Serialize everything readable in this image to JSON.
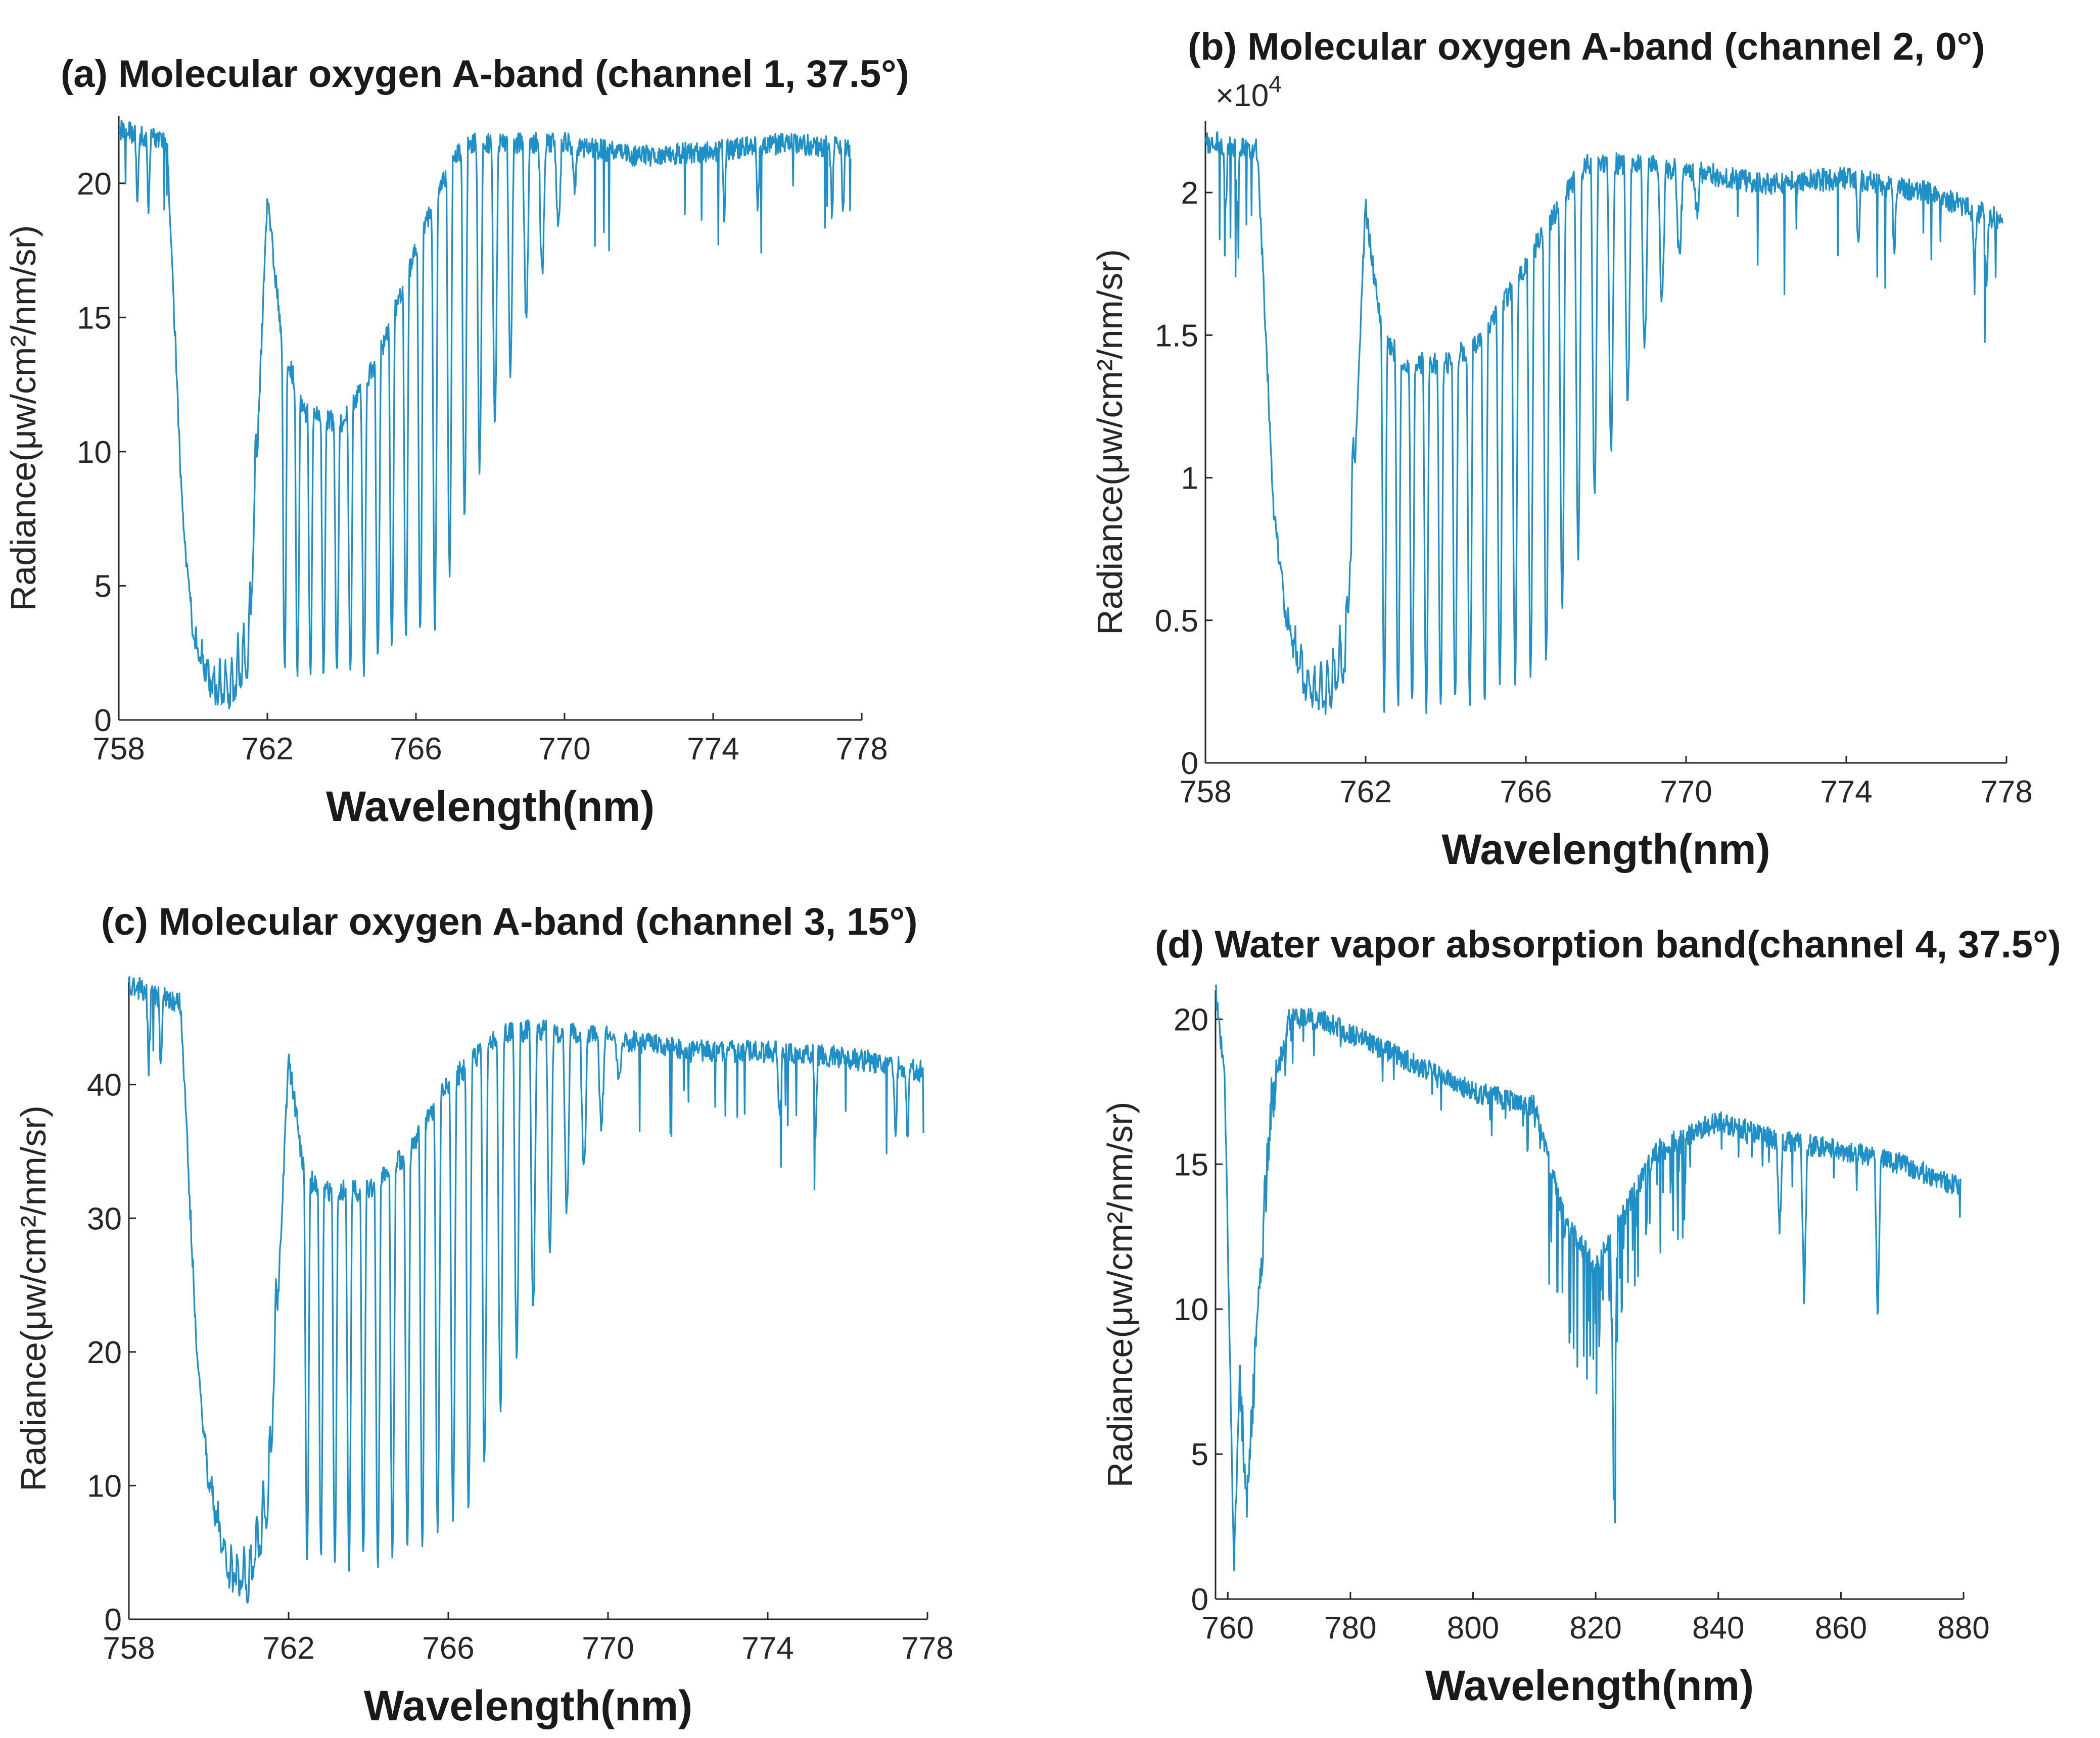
{
  "figure": {
    "line_color": "#1f8fc8",
    "axis_color": "#262626"
  },
  "chart_data": [
    {
      "id": "a",
      "type": "line",
      "title": "(a) Molecular oxygen A-band (channel 1, 37.5°)",
      "xlabel": "Wavelength(nm)",
      "ylabel": "Radiance(μw/cm²/nm/sr)",
      "xlim": [
        758,
        778
      ],
      "ylim": [
        0,
        22.5
      ],
      "xticks": [
        758,
        762,
        766,
        770,
        774,
        778
      ],
      "yticks": [
        0,
        5,
        10,
        15,
        20
      ],
      "exponent": "",
      "profile": "oxygen",
      "series": [
        {
          "name": "channel 1",
          "x": [
            758,
            759.3,
            759.7,
            760.0,
            760.5,
            761.0,
            761.5,
            762.0,
            762.4,
            763.0,
            764.0,
            765.0,
            766.0,
            767.0,
            767.5,
            768.5,
            770,
            772,
            774,
            776,
            777.7
          ],
          "y": [
            22.0,
            21.5,
            8.0,
            3.0,
            1.0,
            0.8,
            2.0,
            19.5,
            14.0,
            11.5,
            11.0,
            13.5,
            17.5,
            21.0,
            21.5,
            21.5,
            21.5,
            21.0,
            21.2,
            21.5,
            21.3
          ]
        }
      ]
    },
    {
      "id": "b",
      "type": "line",
      "title": "(b) Molecular oxygen A-band (channel 2, 0°)",
      "xlabel": "Wavelength(nm)",
      "ylabel": "Radiance(μw/cm²/nm/sr)",
      "xlim": [
        758,
        778
      ],
      "ylim": [
        0,
        2.25
      ],
      "xticks": [
        758,
        762,
        766,
        770,
        774,
        778
      ],
      "yticks": [
        0,
        0.5,
        1,
        1.5,
        2
      ],
      "exponent": "×10",
      "exponent_power": "4",
      "profile": "oxygen",
      "series": [
        {
          "name": "channel 2",
          "x": [
            758,
            759.3,
            759.7,
            760.0,
            760.5,
            761.0,
            761.5,
            762.0,
            762.4,
            763.0,
            764.0,
            765.0,
            766.0,
            767.0,
            767.5,
            768.5,
            770,
            772,
            774,
            776,
            777.9
          ],
          "y": [
            2.18,
            2.15,
            0.9,
            0.5,
            0.25,
            0.2,
            0.3,
            1.95,
            1.5,
            1.4,
            1.4,
            1.5,
            1.75,
            2.0,
            2.1,
            2.1,
            2.08,
            2.03,
            2.05,
            2.0,
            1.9
          ]
        }
      ]
    },
    {
      "id": "c",
      "type": "line",
      "title": "(c) Molecular oxygen A-band (channel 3, 15°)",
      "xlabel": "Wavelength(nm)",
      "ylabel": "Radiance(μw/cm²/nm/sr)",
      "xlim": [
        758,
        778
      ],
      "ylim": [
        0,
        48
      ],
      "xticks": [
        758,
        762,
        766,
        770,
        774,
        778
      ],
      "yticks": [
        0,
        10,
        20,
        30,
        40
      ],
      "exponent": "",
      "profile": "oxygen",
      "series": [
        {
          "name": "channel 3",
          "x": [
            758,
            759.3,
            759.7,
            760.0,
            760.5,
            761.0,
            761.5,
            762.0,
            762.4,
            763.0,
            764.0,
            765.0,
            766.0,
            767.0,
            767.5,
            768.5,
            770,
            772,
            774,
            776,
            777.9
          ],
          "y": [
            47.5,
            46.0,
            20.0,
            10.0,
            3.0,
            2.0,
            8.0,
            42.0,
            33.0,
            32.0,
            32.0,
            35.0,
            40.0,
            43.0,
            44.0,
            44.0,
            43.5,
            42.5,
            42.5,
            42.0,
            41.0
          ]
        }
      ]
    },
    {
      "id": "d",
      "type": "line",
      "title": "(d) Water vapor absorption band(channel 4, 37.5°)",
      "xlabel": "Wavelength(nm)",
      "ylabel": "Radiance(μw/cm²/nm/sr)",
      "xlim": [
        758,
        880
      ],
      "ylim": [
        0,
        21
      ],
      "xticks": [
        760,
        780,
        800,
        820,
        840,
        860,
        880
      ],
      "yticks": [
        0,
        5,
        10,
        15,
        20
      ],
      "exponent": "",
      "profile": "water",
      "series": [
        {
          "name": "channel 4",
          "x": [
            758,
            759.5,
            761,
            762,
            763,
            765,
            767,
            770,
            775,
            785,
            800,
            810,
            815,
            820,
            825,
            830,
            840,
            850,
            860,
            870,
            879.5
          ],
          "y": [
            21.0,
            18.0,
            1.0,
            8.0,
            3.0,
            10.0,
            17.0,
            20.0,
            20.0,
            19.0,
            17.5,
            17.0,
            13.0,
            11.5,
            13.5,
            15.5,
            16.5,
            15.8,
            15.5,
            15.0,
            14.2
          ]
        }
      ]
    }
  ]
}
